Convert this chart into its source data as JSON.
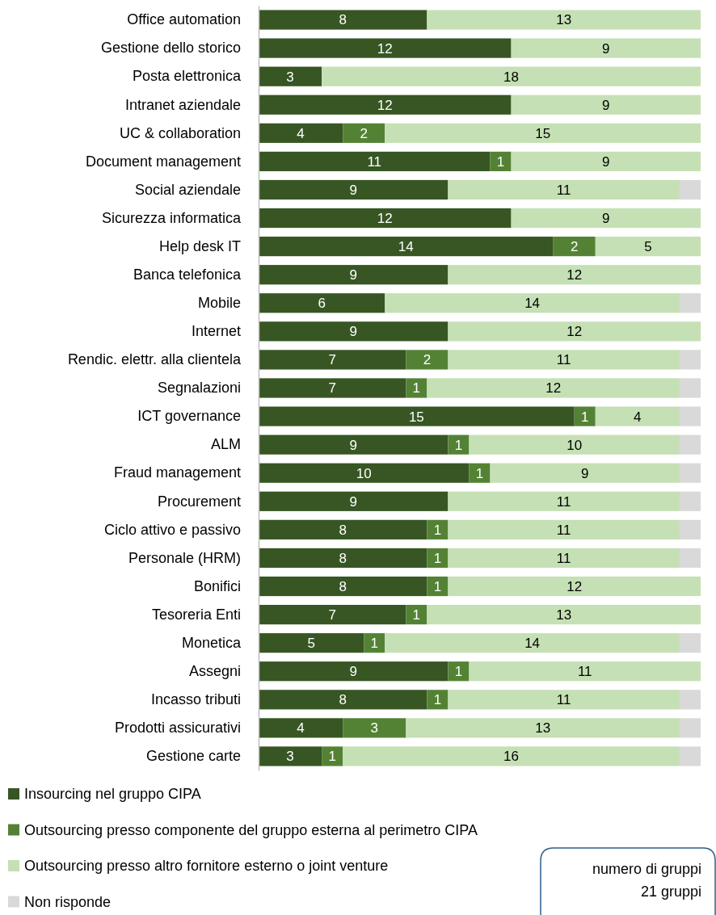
{
  "chart_data": {
    "type": "bar",
    "orientation": "horizontal",
    "stacked": true,
    "categories": [
      "Office automation",
      "Gestione dello storico",
      "Posta elettronica",
      "Intranet aziendale",
      "UC & collaboration",
      "Document management",
      "Social aziendale",
      "Sicurezza informatica",
      "Help desk IT",
      "Banca telefonica",
      "Mobile",
      "Internet",
      "Rendic. elettr. alla clientela",
      "Segnalazioni",
      "ICT governance",
      "ALM",
      "Fraud management",
      "Procurement",
      "Ciclo attivo e passivo",
      "Personale (HRM)",
      "Bonifici",
      "Tesoreria Enti",
      "Monetica",
      "Assegni",
      "Incasso tributi",
      "Prodotti assicurativi",
      "Gestione carte"
    ],
    "series": [
      {
        "name": "Insourcing nel gruppo CIPA",
        "color": "#375623",
        "values": [
          8,
          12,
          3,
          12,
          4,
          11,
          9,
          12,
          14,
          9,
          6,
          9,
          7,
          7,
          15,
          9,
          10,
          9,
          8,
          8,
          8,
          7,
          5,
          9,
          8,
          4,
          3
        ],
        "value_labels": [
          "8",
          "12",
          "3",
          "12",
          "4",
          "11",
          "9",
          "12",
          "14",
          "9",
          "6",
          "9",
          "7",
          "7",
          "15",
          "9",
          "10",
          "9",
          "8",
          "8",
          "8",
          "7",
          "5",
          "9",
          "8",
          "4",
          "3"
        ]
      },
      {
        "name": "Outsourcing presso componente del gruppo esterna al perimetro CIPA",
        "color": "#548235",
        "values": [
          0,
          0,
          0,
          0,
          2,
          1,
          0,
          0,
          2,
          0,
          0,
          0,
          2,
          1,
          1,
          1,
          1,
          0,
          1,
          1,
          1,
          1,
          1,
          1,
          1,
          3,
          1
        ],
        "value_labels": [
          null,
          null,
          null,
          null,
          "2",
          "1",
          null,
          null,
          "2",
          null,
          null,
          null,
          "2",
          "1",
          "1",
          "1",
          "1",
          null,
          "1",
          "1",
          "1",
          "1",
          "1",
          "1",
          "1",
          "3",
          "1"
        ]
      },
      {
        "name": "Outsourcing presso altro fornitore esterno o joint venture",
        "color": "#c5e0b4",
        "values": [
          13,
          9,
          18,
          9,
          15,
          9,
          11,
          9,
          5,
          12,
          14,
          12,
          11,
          12,
          4,
          10,
          9,
          11,
          11,
          11,
          12,
          13,
          14,
          11,
          11,
          13,
          16
        ],
        "value_labels": [
          "13",
          "9",
          "18",
          "9",
          "15",
          "9",
          "11",
          "9",
          "5",
          "12",
          "14",
          "12",
          "11",
          "12",
          "4",
          "10",
          "9",
          "11",
          "11",
          "11",
          "12",
          "13",
          "14",
          "11",
          "11",
          "13",
          "16"
        ]
      },
      {
        "name": "Non risponde",
        "color": "#d9d9d9",
        "values": [
          0,
          0,
          0,
          0,
          0,
          0,
          1,
          0,
          0,
          0,
          1,
          0,
          1,
          1,
          1,
          1,
          1,
          1,
          1,
          1,
          0,
          0,
          1,
          0,
          1,
          1,
          1
        ]
      }
    ],
    "xlim": [
      0,
      21
    ],
    "tick_labels": "y",
    "legend": "bottom",
    "annotations": [
      "numero di gruppi",
      "21 gruppi"
    ]
  }
}
